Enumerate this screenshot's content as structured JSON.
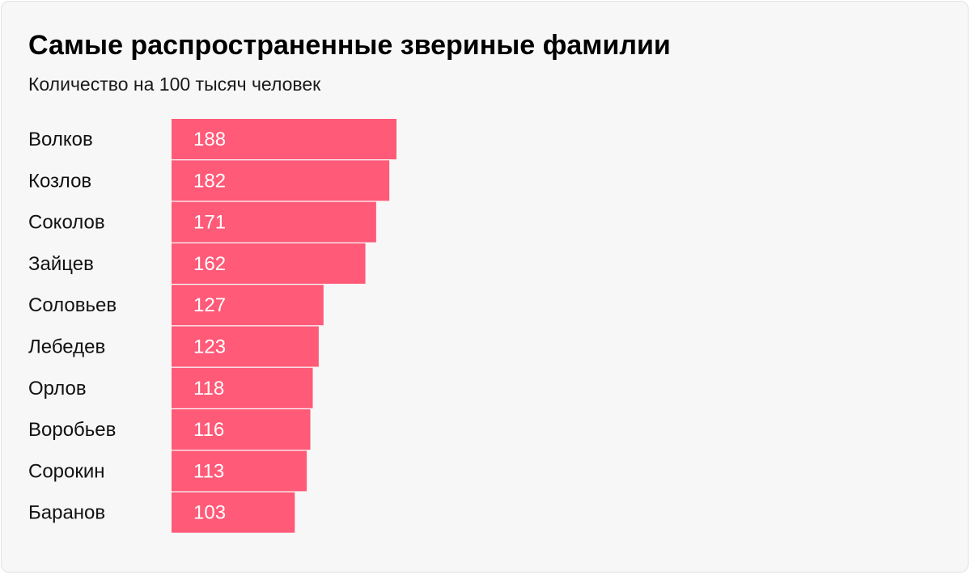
{
  "header": {
    "title": "Самые распространенные звериные фамилии",
    "subtitle": "Количество на 100 тысяч человек"
  },
  "colors": {
    "bar": "#ff5a78",
    "background": "#f7f7f7"
  },
  "chart_data": {
    "type": "bar",
    "orientation": "horizontal",
    "title": "Самые распространенные звериные фамилии",
    "subtitle": "Количество на 100 тысяч человек",
    "categories": [
      "Волков",
      "Козлов",
      "Соколов",
      "Зайцев",
      "Соловьев",
      "Лебедев",
      "Орлов",
      "Воробьев",
      "Сорокин",
      "Баранов"
    ],
    "values": [
      188,
      182,
      171,
      162,
      127,
      123,
      118,
      116,
      113,
      103
    ],
    "xlabel": "",
    "ylabel": "",
    "xlim": [
      0,
      188
    ],
    "grid": false,
    "legend": "none",
    "data_labels": true
  }
}
